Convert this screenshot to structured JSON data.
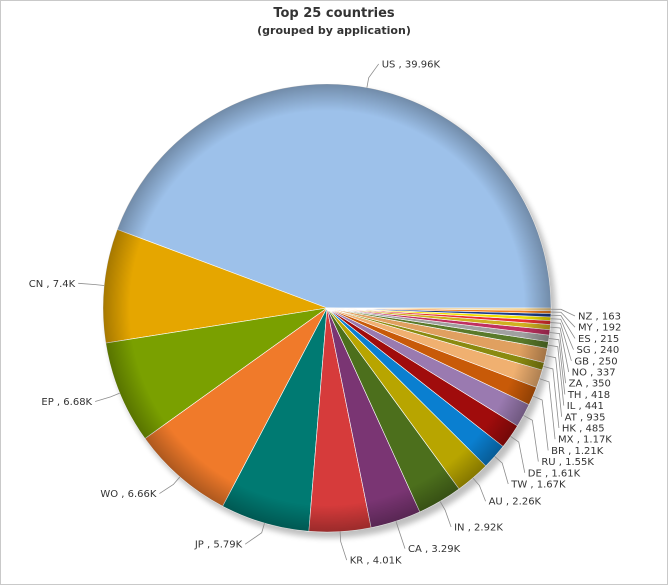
{
  "chart_data": {
    "type": "pie",
    "title": "Top 25 countries",
    "subtitle": "(grouped by application)",
    "slices": [
      {
        "label": "US",
        "display": "39.96K",
        "value": 39960,
        "color": "#9dc1ea"
      },
      {
        "label": "CN",
        "display": "7.4K",
        "value": 7400,
        "color": "#e5a600"
      },
      {
        "label": "EP",
        "display": "6.68K",
        "value": 6680,
        "color": "#7aa000"
      },
      {
        "label": "WO",
        "display": "6.66K",
        "value": 6660,
        "color": "#f07a2a"
      },
      {
        "label": "JP",
        "display": "5.79K",
        "value": 5790,
        "color": "#007a72"
      },
      {
        "label": "KR",
        "display": "4.01K",
        "value": 4010,
        "color": "#d63b3b"
      },
      {
        "label": "CA",
        "display": "3.29K",
        "value": 3290,
        "color": "#7a3573"
      },
      {
        "label": "IN",
        "display": "2.92K",
        "value": 2920,
        "color": "#4c6f1c"
      },
      {
        "label": "AU",
        "display": "2.26K",
        "value": 2260,
        "color": "#b8a500"
      },
      {
        "label": "TW",
        "display": "1.67K",
        "value": 1670,
        "color": "#0a7fd0"
      },
      {
        "label": "DE",
        "display": "1.61K",
        "value": 1610,
        "color": "#a00c0c"
      },
      {
        "label": "RU",
        "display": "1.55K",
        "value": 1550,
        "color": "#9a7ab0"
      },
      {
        "label": "BR",
        "display": "1.21K",
        "value": 1210,
        "color": "#c85a08"
      },
      {
        "label": "MX",
        "display": "1.17K",
        "value": 1170,
        "color": "#f0b070"
      },
      {
        "label": "HK",
        "display": "485",
        "value": 485,
        "color": "#8a8a10"
      },
      {
        "label": "AT",
        "display": "935",
        "value": 935,
        "color": "#e0a060"
      },
      {
        "label": "IL",
        "display": "441",
        "value": 441,
        "color": "#5a7a2a"
      },
      {
        "label": "TH",
        "display": "418",
        "value": 418,
        "color": "#a0a0a0"
      },
      {
        "label": "ZA",
        "display": "350",
        "value": 350,
        "color": "#c03060"
      },
      {
        "label": "NO",
        "display": "337",
        "value": 337,
        "color": "#d0b020"
      },
      {
        "label": "GB",
        "display": "250",
        "value": 250,
        "color": "#e83030"
      },
      {
        "label": "SG",
        "display": "240",
        "value": 240,
        "color": "#f0e000"
      },
      {
        "label": "ES",
        "display": "215",
        "value": 215,
        "color": "#1a3a8a"
      },
      {
        "label": "MY",
        "display": "192",
        "value": 192,
        "color": "#f08020"
      },
      {
        "label": "NZ",
        "display": "163",
        "value": 163,
        "color": "#f0d090"
      }
    ],
    "separator": " , ",
    "legend": "none"
  }
}
